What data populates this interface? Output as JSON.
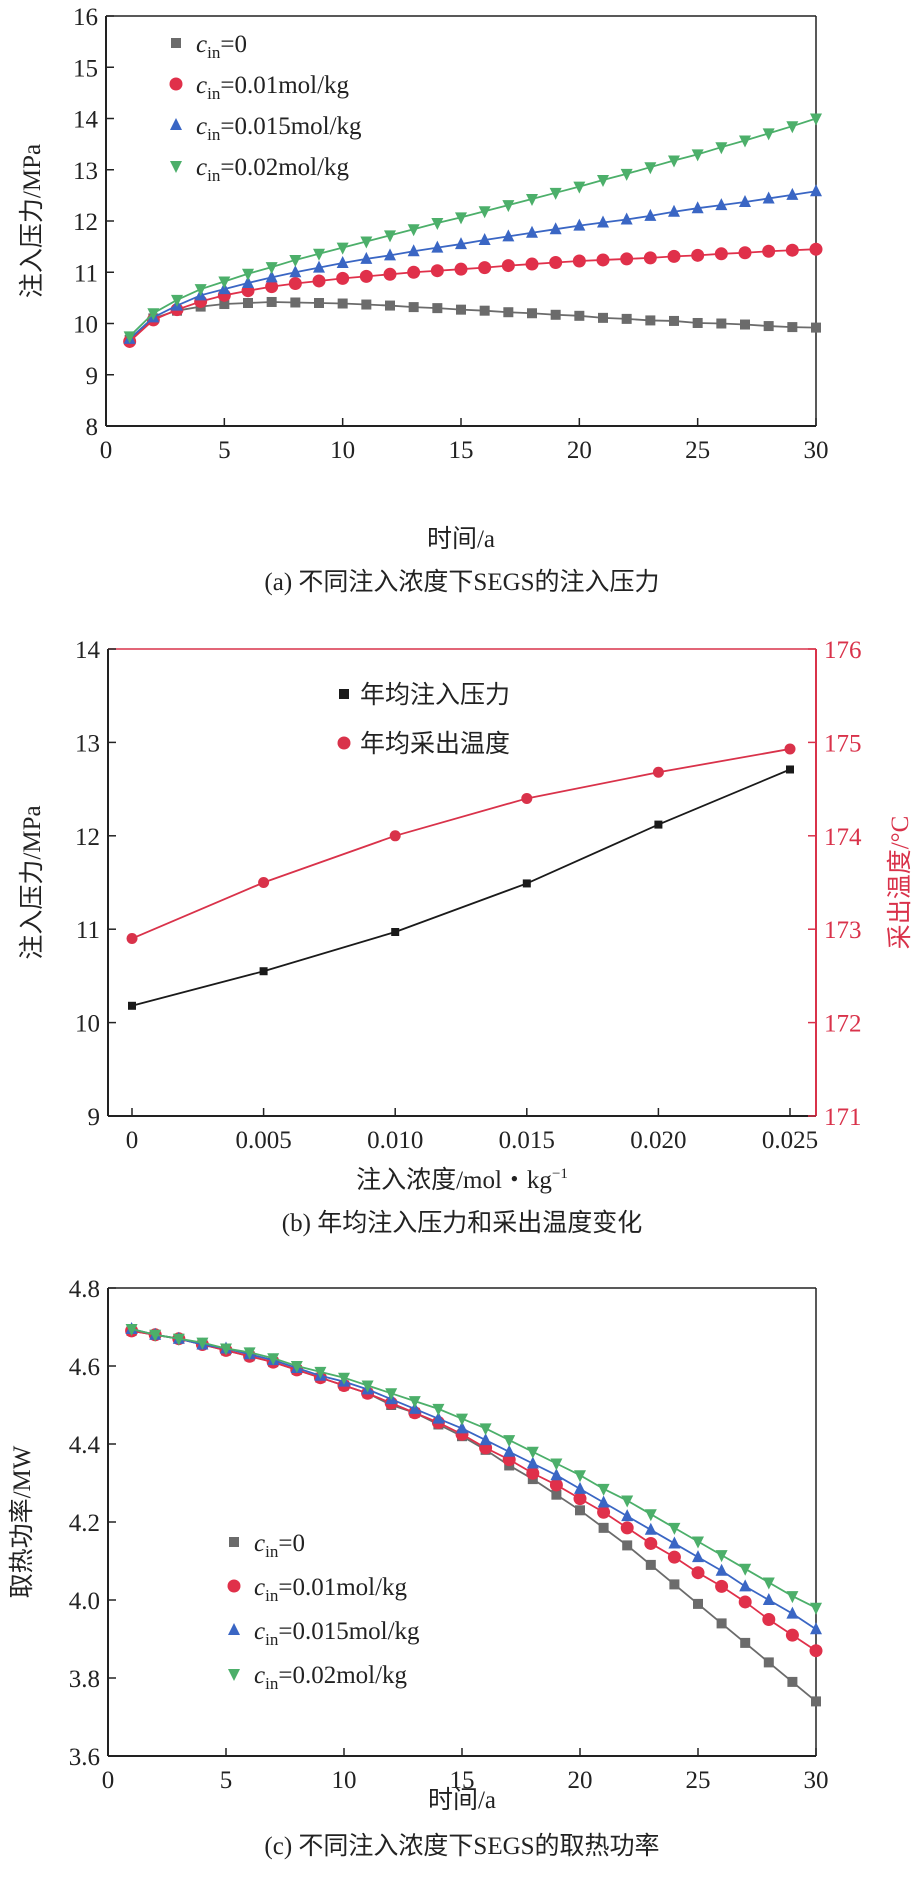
{
  "colors": {
    "c0": "#6b6b6b",
    "c001": "#e0304a",
    "c0015": "#3a66c4",
    "c002": "#4caf6a",
    "black": "#1a1a1a",
    "red": "#d9324a"
  },
  "chart_data": [
    {
      "type": "line",
      "title": "",
      "caption": "(a) 不同注入浓度下SEGS的注入压力",
      "xlabel": "时间/a",
      "ylabel": "注入压力/MPa",
      "xlim": [
        0,
        30
      ],
      "ylim": [
        8,
        16
      ],
      "xticks": [
        0,
        5,
        10,
        15,
        20,
        25,
        30
      ],
      "yticks": [
        8,
        9,
        10,
        11,
        12,
        13,
        14,
        15,
        16
      ],
      "legend": "top-left",
      "x": [
        1,
        2,
        3,
        4,
        5,
        6,
        7,
        8,
        9,
        10,
        11,
        12,
        13,
        14,
        15,
        16,
        17,
        18,
        19,
        20,
        21,
        22,
        23,
        24,
        25,
        26,
        27,
        28,
        29,
        30
      ],
      "series": [
        {
          "name": "c_in=0",
          "sym": "c",
          "sub": "in",
          "rest": "=0",
          "marker": "square",
          "color": "#6b6b6b",
          "values": [
            9.68,
            10.1,
            10.25,
            10.33,
            10.38,
            10.4,
            10.42,
            10.41,
            10.4,
            10.39,
            10.37,
            10.35,
            10.32,
            10.3,
            10.27,
            10.25,
            10.22,
            10.2,
            10.17,
            10.15,
            10.11,
            10.09,
            10.06,
            10.05,
            10.01,
            10.0,
            9.98,
            9.95,
            9.93,
            9.92
          ]
        },
        {
          "name": "c_in=0.01mol/kg",
          "sym": "c",
          "sub": "in",
          "rest": "=0.01mol/kg",
          "marker": "circle",
          "color": "#e0304a",
          "values": [
            9.65,
            10.07,
            10.27,
            10.43,
            10.55,
            10.64,
            10.72,
            10.78,
            10.83,
            10.88,
            10.92,
            10.96,
            11.0,
            11.03,
            11.06,
            11.09,
            11.13,
            11.16,
            11.19,
            11.22,
            11.24,
            11.26,
            11.28,
            11.31,
            11.33,
            11.36,
            11.38,
            11.41,
            11.43,
            11.45
          ]
        },
        {
          "name": "c_in=0.015mol/kg",
          "sym": "c",
          "sub": "in",
          "rest": "=0.015mol/kg",
          "marker": "triangle-up",
          "color": "#3a66c4",
          "values": [
            9.7,
            10.12,
            10.35,
            10.55,
            10.67,
            10.79,
            10.9,
            11.0,
            11.09,
            11.18,
            11.26,
            11.33,
            11.41,
            11.48,
            11.55,
            11.63,
            11.7,
            11.77,
            11.84,
            11.91,
            11.97,
            12.03,
            12.1,
            12.18,
            12.25,
            12.31,
            12.37,
            12.44,
            12.51,
            12.58
          ]
        },
        {
          "name": "c_in=0.02mol/kg",
          "sym": "c",
          "sub": "in",
          "rest": "=0.02mol/kg",
          "marker": "triangle-down",
          "color": "#4caf6a",
          "values": [
            9.75,
            10.2,
            10.46,
            10.67,
            10.82,
            10.97,
            11.1,
            11.24,
            11.36,
            11.48,
            11.6,
            11.72,
            11.84,
            11.96,
            12.07,
            12.19,
            12.31,
            12.43,
            12.55,
            12.67,
            12.8,
            12.92,
            13.05,
            13.18,
            13.3,
            13.44,
            13.57,
            13.71,
            13.85,
            14.0
          ]
        }
      ]
    },
    {
      "type": "line",
      "title": "",
      "caption": "(b) 年均注入压力和采出温度变化",
      "xlabel": "注入浓度/mol・kg",
      "xlabel_sup": "−1",
      "ylabel": "注入压力/MPa",
      "y2label": "采出温度/°C",
      "xlim": [
        0,
        0.025
      ],
      "ylim": [
        9,
        14
      ],
      "y2lim": [
        171,
        176
      ],
      "xticks": [
        "0",
        "0.005",
        "0.010",
        "0.015",
        "0.020",
        "0.025"
      ],
      "yticks": [
        9,
        10,
        11,
        12,
        13,
        14
      ],
      "y2ticks": [
        171,
        172,
        173,
        174,
        175,
        176
      ],
      "legend": "top-center",
      "x": [
        0,
        0.005,
        0.01,
        0.015,
        0.02,
        0.025
      ],
      "series": [
        {
          "name": "年均注入压力",
          "axis": "left",
          "marker": "square",
          "color": "#1a1a1a",
          "values": [
            10.18,
            10.55,
            10.97,
            11.49,
            12.12,
            12.71
          ]
        },
        {
          "name": "年均采出温度",
          "axis": "right",
          "marker": "circle",
          "color": "#d9324a",
          "values": [
            172.9,
            173.5,
            174.0,
            174.4,
            174.68,
            174.93
          ]
        }
      ]
    },
    {
      "type": "line",
      "title": "",
      "caption": "(c) 不同注入浓度下SEGS的取热功率",
      "xlabel": "时间/a",
      "ylabel": "取热功率/MW",
      "xlim": [
        0,
        30
      ],
      "ylim": [
        3.6,
        4.8
      ],
      "xticks": [
        0,
        5,
        10,
        15,
        20,
        25,
        30
      ],
      "yticks": [
        "3.6",
        "3.8",
        "4.0",
        "4.2",
        "4.4",
        "4.6",
        "4.8"
      ],
      "legend": "bottom-left",
      "x": [
        1,
        2,
        3,
        4,
        5,
        6,
        7,
        8,
        9,
        10,
        11,
        12,
        13,
        14,
        15,
        16,
        17,
        18,
        19,
        20,
        21,
        22,
        23,
        24,
        25,
        26,
        27,
        28,
        29,
        30
      ],
      "series": [
        {
          "name": "c_in=0",
          "sym": "c",
          "sub": "in",
          "rest": "=0",
          "marker": "square",
          "color": "#6b6b6b",
          "values": [
            4.69,
            4.68,
            4.67,
            4.655,
            4.64,
            4.625,
            4.61,
            4.59,
            4.57,
            4.55,
            4.53,
            4.5,
            4.48,
            4.45,
            4.42,
            4.385,
            4.345,
            4.31,
            4.27,
            4.23,
            4.185,
            4.14,
            4.09,
            4.04,
            3.99,
            3.94,
            3.89,
            3.84,
            3.79,
            3.74
          ]
        },
        {
          "name": "c_in=0.01mol/kg",
          "sym": "c",
          "sub": "in",
          "rest": "=0.01mol/kg",
          "marker": "circle",
          "color": "#e0304a",
          "values": [
            4.69,
            4.68,
            4.67,
            4.655,
            4.64,
            4.625,
            4.61,
            4.59,
            4.57,
            4.55,
            4.53,
            4.505,
            4.48,
            4.455,
            4.425,
            4.39,
            4.36,
            4.325,
            4.295,
            4.26,
            4.225,
            4.185,
            4.145,
            4.11,
            4.07,
            4.035,
            3.995,
            3.95,
            3.91,
            3.87
          ]
        },
        {
          "name": "c_in=0.015mol/kg",
          "sym": "c",
          "sub": "in",
          "rest": "=0.015mol/kg",
          "marker": "triangle-up",
          "color": "#3a66c4",
          "values": [
            4.695,
            4.68,
            4.67,
            4.655,
            4.645,
            4.63,
            4.615,
            4.595,
            4.575,
            4.56,
            4.54,
            4.515,
            4.49,
            4.465,
            4.44,
            4.41,
            4.38,
            4.35,
            4.32,
            4.285,
            4.25,
            4.215,
            4.18,
            4.145,
            4.11,
            4.075,
            4.035,
            4.0,
            3.965,
            3.925
          ]
        },
        {
          "name": "c_in=0.02mol/kg",
          "sym": "c",
          "sub": "in",
          "rest": "=0.02mol/kg",
          "marker": "triangle-down",
          "color": "#4caf6a",
          "values": [
            4.695,
            4.68,
            4.67,
            4.66,
            4.645,
            4.635,
            4.62,
            4.6,
            4.585,
            4.57,
            4.55,
            4.53,
            4.51,
            4.49,
            4.465,
            4.44,
            4.41,
            4.38,
            4.35,
            4.32,
            4.285,
            4.255,
            4.22,
            4.185,
            4.15,
            4.115,
            4.08,
            4.045,
            4.01,
            3.98
          ]
        }
      ]
    }
  ]
}
